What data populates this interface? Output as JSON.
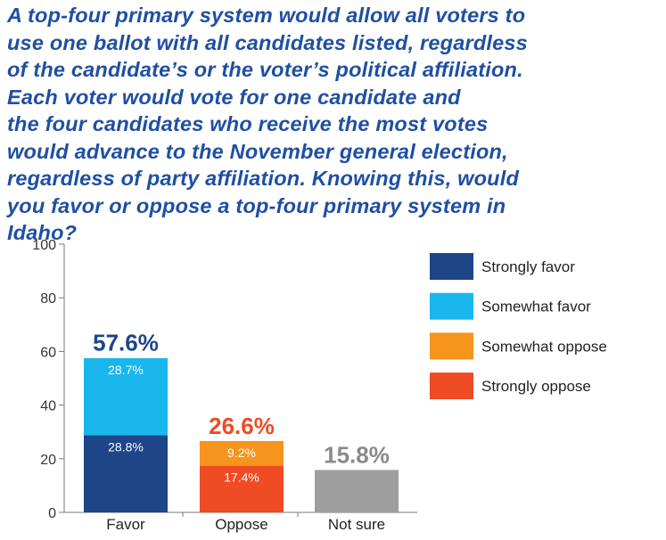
{
  "title_lines": [
    "A top-four primary system would allow all voters to",
    "use one ballot with all candidates listed, regardless",
    "of the candidate’s or the voter’s political affiliation.",
    "Each voter would vote for one candidate and",
    "the four candidates who receive the most votes",
    "would advance to the November general election,",
    "regardless of party affiliation. Knowing this, would",
    "you favor or oppose a top-four primary system in",
    "Idaho?"
  ],
  "colors": {
    "strongly_favor": "#1e4588",
    "somewhat_favor": "#19b7ec",
    "somewhat_oppose": "#f7941d",
    "strongly_oppose": "#ef4b24",
    "not_sure": "#9e9e9e",
    "favor_total": "#1e4588",
    "oppose_total": "#ef4b24",
    "not_sure_total": "#8a8a8a"
  },
  "chart_data": {
    "type": "bar",
    "stacked": true,
    "categories": [
      "Favor",
      "Oppose",
      "Not sure"
    ],
    "ylim": [
      0,
      100
    ],
    "yticks": [
      0,
      20,
      40,
      60,
      80,
      100
    ],
    "ytick_labels": [
      "0",
      "20",
      "40",
      "60",
      "80",
      "100"
    ],
    "legend_position": "right",
    "series": [
      {
        "name": "Strongly favor",
        "color_key": "strongly_favor",
        "values": [
          28.8,
          null,
          null
        ],
        "labels": [
          "28.8%",
          "",
          ""
        ]
      },
      {
        "name": "Somewhat favor",
        "color_key": "somewhat_favor",
        "values": [
          28.7,
          null,
          null
        ],
        "labels": [
          "28.7%",
          "",
          ""
        ]
      },
      {
        "name": "Somewhat oppose",
        "color_key": "somewhat_oppose",
        "values": [
          null,
          9.2,
          null
        ],
        "labels": [
          "",
          "9.2%",
          ""
        ],
        "order": "top"
      },
      {
        "name": "Strongly oppose",
        "color_key": "strongly_oppose",
        "values": [
          null,
          17.4,
          null
        ],
        "labels": [
          "",
          "17.4%",
          ""
        ],
        "order": "bottom"
      },
      {
        "name": "Not sure",
        "color_key": "not_sure",
        "values": [
          null,
          null,
          15.8
        ],
        "labels": [
          "",
          "",
          ""
        ],
        "in_legend": false
      }
    ],
    "totals": [
      {
        "value": 57.6,
        "label": "57.6%",
        "color_key": "favor_total"
      },
      {
        "value": 26.6,
        "label": "26.6%",
        "color_key": "oppose_total"
      },
      {
        "value": 15.8,
        "label": "15.8%",
        "color_key": "not_sure_total"
      }
    ],
    "legend": [
      {
        "name": "Strongly favor",
        "color_key": "strongly_favor"
      },
      {
        "name": "Somewhat favor",
        "color_key": "somewhat_favor"
      },
      {
        "name": "Somewhat oppose",
        "color_key": "somewhat_oppose"
      },
      {
        "name": "Strongly oppose",
        "color_key": "strongly_oppose"
      }
    ]
  }
}
